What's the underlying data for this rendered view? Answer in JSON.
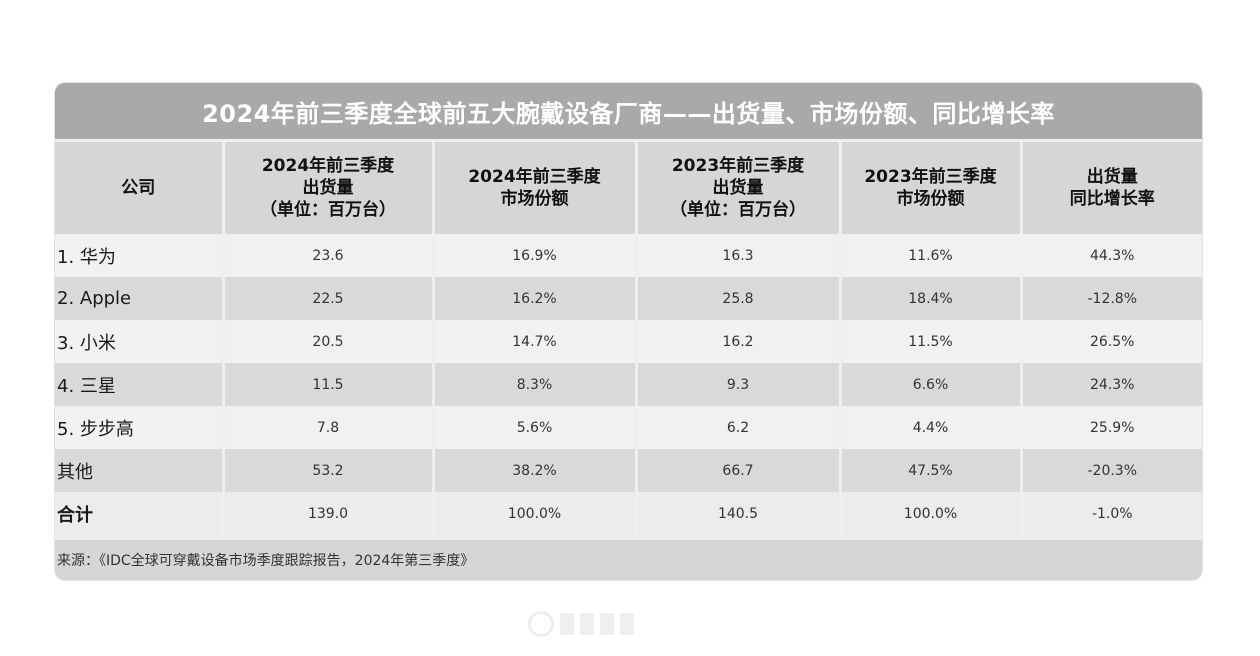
{
  "title": "2024年前三季度全球前五大腕戴设备厂商——出货量、市场份额、同比增长率",
  "headers": [
    "公司",
    "2024年前三季度\n出货量\n（单位：百万台）",
    "2024年前三季度\n市场份额",
    "2023年前三季度\n出货量\n（单位：百万台）",
    "2023年前三季度\n市场份额",
    "出货量\n同比增长率"
  ],
  "rows": [
    [
      "1. 华为",
      "23.6",
      "16.9%",
      "16.3",
      "11.6%",
      "44.3%"
    ],
    [
      "2. Apple",
      "22.5",
      "16.2%",
      "25.8",
      "18.4%",
      "-12.8%"
    ],
    [
      "3. 小米",
      "20.5",
      "14.7%",
      "16.2",
      "11.5%",
      "26.5%"
    ],
    [
      "4. 三星",
      "11.5",
      "8.3%",
      "9.3",
      "6.6%",
      "24.3%"
    ],
    [
      "5. 步步高",
      "7.8",
      "5.6%",
      "6.2",
      "4.4%",
      "25.9%"
    ],
    [
      "其他",
      "53.2",
      "38.2%",
      "66.7",
      "47.5%",
      "-20.3%"
    ],
    [
      "合计",
      "139.0",
      "100.0%",
      "140.5",
      "100.0%",
      "-1.0%"
    ]
  ],
  "source": "来源：《IDC全球可穿戴设备市场季度跟踪报告，2024年第三季度》",
  "chart_data": {
    "type": "table",
    "title": "2024年前三季度全球前五大腕戴设备厂商——出货量、市场份额、同比增长率",
    "columns": [
      "公司",
      "2024年前三季度 出货量 （单位：百万台）",
      "2024年前三季度 市场份额",
      "2023年前三季度 出货量 （单位：百万台）",
      "2023年前三季度 市场份额",
      "出货量 同比增长率"
    ],
    "categories": [
      "1. 华为",
      "2. Apple",
      "3. 小米",
      "4. 三星",
      "5. 步步高",
      "其他",
      "合计"
    ],
    "series": [
      {
        "name": "2024年前三季度 出货量 （单位：百万台）",
        "values": [
          23.6,
          22.5,
          20.5,
          11.5,
          7.8,
          53.2,
          139.0
        ]
      },
      {
        "name": "2024年前三季度 市场份额",
        "values": [
          16.9,
          16.2,
          14.7,
          8.3,
          5.6,
          38.2,
          100.0
        ]
      },
      {
        "name": "2023年前三季度 出货量 （单位：百万台）",
        "values": [
          16.3,
          25.8,
          16.2,
          9.3,
          6.2,
          66.7,
          140.5
        ]
      },
      {
        "name": "2023年前三季度 市场份额",
        "values": [
          11.6,
          18.4,
          11.5,
          6.6,
          4.4,
          47.5,
          100.0
        ]
      },
      {
        "name": "出货量 同比增长率",
        "values": [
          44.3,
          -12.8,
          26.5,
          24.3,
          25.9,
          -20.3,
          -1.0
        ]
      }
    ],
    "source": "来源：《IDC全球可穿戴设备市场季度跟踪报告，2024年第三季度》"
  }
}
